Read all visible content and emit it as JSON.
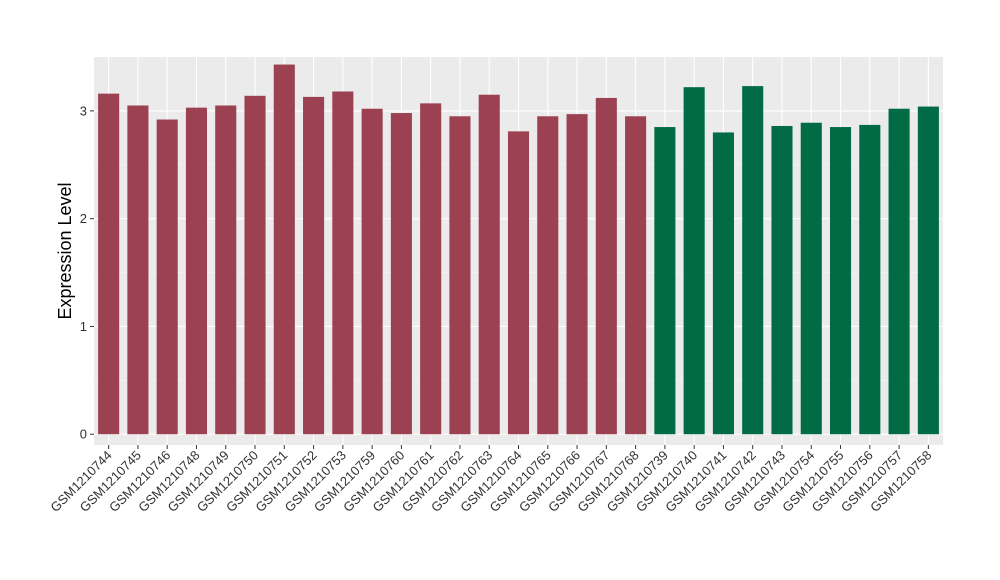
{
  "chart_data": {
    "type": "bar",
    "title": "",
    "xlabel": "",
    "ylabel": "Expression Level",
    "ylim": [
      -0.1,
      3.5
    ],
    "yticks": [
      0,
      1,
      2,
      3
    ],
    "grid": true,
    "background": "#ebebeb",
    "categories": [
      "GSM1210744",
      "GSM1210745",
      "GSM1210746",
      "GSM1210748",
      "GSM1210749",
      "GSM1210750",
      "GSM1210751",
      "GSM1210752",
      "GSM1210753",
      "GSM1210759",
      "GSM1210760",
      "GSM1210761",
      "GSM1210762",
      "GSM1210763",
      "GSM1210764",
      "GSM1210765",
      "GSM1210766",
      "GSM1210767",
      "GSM1210768",
      "GSM1210739",
      "GSM1210740",
      "GSM1210741",
      "GSM1210742",
      "GSM1210743",
      "GSM1210754",
      "GSM1210755",
      "GSM1210756",
      "GSM1210757",
      "GSM1210758"
    ],
    "values": [
      3.16,
      3.05,
      2.92,
      3.03,
      3.05,
      3.14,
      3.43,
      3.13,
      3.18,
      3.02,
      2.98,
      3.07,
      2.95,
      3.15,
      2.81,
      2.95,
      2.97,
      3.12,
      2.95,
      2.85,
      3.22,
      2.8,
      3.23,
      2.86,
      2.89,
      2.85,
      2.87,
      3.02,
      3.04
    ],
    "bar_colors": [
      "#9b4151",
      "#9b4151",
      "#9b4151",
      "#9b4151",
      "#9b4151",
      "#9b4151",
      "#9b4151",
      "#9b4151",
      "#9b4151",
      "#9b4151",
      "#9b4151",
      "#9b4151",
      "#9b4151",
      "#9b4151",
      "#9b4151",
      "#9b4151",
      "#9b4151",
      "#9b4151",
      "#9b4151",
      "#006b45",
      "#006b45",
      "#006b45",
      "#006b45",
      "#006b45",
      "#006b45",
      "#006b45",
      "#006b45",
      "#006b45",
      "#006b45"
    ]
  }
}
